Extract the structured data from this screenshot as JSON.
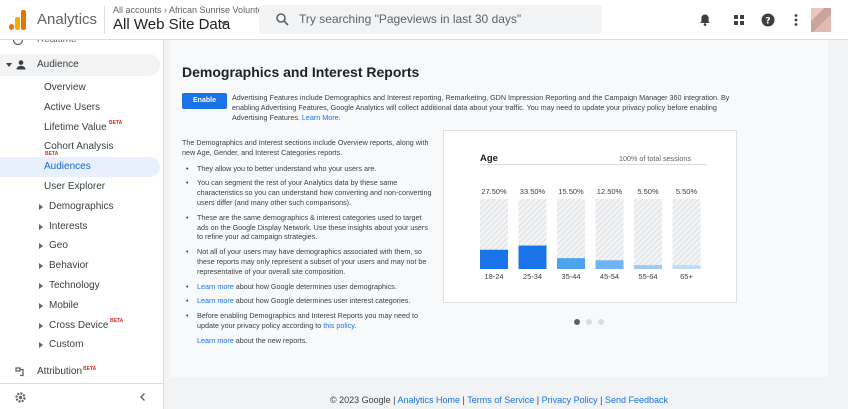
{
  "header": {
    "app_title": "Analytics",
    "account_breadcrumb": "All accounts › African Sunrise Volunte...",
    "property_name": "All Web Site Data",
    "search_placeholder": "Try searching \"Pageviews in last 30 days\"",
    "icons": [
      "notifications-icon",
      "apps-icon",
      "help-icon",
      "more-vert-icon",
      "avatar"
    ]
  },
  "sidebar": {
    "realtime": "Realtime",
    "audience": "Audience",
    "items": [
      {
        "label": "Overview"
      },
      {
        "label": "Active Users"
      },
      {
        "label": "Lifetime Value",
        "badge": "BETA"
      },
      {
        "label": "Cohort Analysis",
        "badge": "BETA"
      },
      {
        "label": "Audiences",
        "active": true
      },
      {
        "label": "User Explorer"
      },
      {
        "label": "Demographics"
      },
      {
        "label": "Interests"
      },
      {
        "label": "Geo"
      },
      {
        "label": "Behavior"
      },
      {
        "label": "Technology"
      },
      {
        "label": "Mobile"
      },
      {
        "label": "Cross Device",
        "badge": "BETA"
      },
      {
        "label": "Custom"
      }
    ],
    "attribution": "Attribution",
    "attribution_badge": "BETA"
  },
  "main": {
    "title": "Demographics and Interest Reports",
    "enable_button": "Enable",
    "intro_text": "Advertising Features include Demographics and Interest reporting, Remarketing, GDN Impression Reporting and the Campaign Manager 360 integration. By enabling Advertising Features, Google Analytics will collect additional data about your traffic. You may need to update your privacy policy before enabling Advertising Features.",
    "intro_link": "Learn More.",
    "description": "The Demographics and Interest sections include Overview reports, along with new Age, Gender, and Interest Categories reports.",
    "bullets": [
      "They allow you to better understand who your users are.",
      "You can segment the rest of your Analytics data by these same characteristics so you can understand how converting and non-converting users differ (and many other such comparisons).",
      "These are the same demographics & interest categories used to target ads on the Google Display Network. Use these insights about your users to refine your ad campaign strategies.",
      "Not all of your users may have demographics associated with them, so these reports may only represent a subset of your users and may not be representative of your overall site composition."
    ],
    "learn_more_1": {
      "link": "Learn more",
      "text": " about how Google determines user demographics."
    },
    "learn_more_2": {
      "link": "Learn more",
      "text": " about how Google determines user interest categories."
    },
    "policy_note": {
      "text": "Before enabling Demographics and Interest Reports you may need to update your privacy policy according to ",
      "link": "this policy",
      "end": "."
    },
    "learn_more_3": {
      "link": "Learn more",
      "text": " about the new reports."
    }
  },
  "chart_data": {
    "type": "bar",
    "title": "Age",
    "subtitle": "100% of total sessions",
    "categories": [
      "18-24",
      "25-34",
      "35-44",
      "45-54",
      "55-64",
      "65+"
    ],
    "values": [
      27.5,
      33.5,
      15.5,
      12.5,
      5.5,
      5.5
    ],
    "value_labels": [
      "27.50%",
      "33.50%",
      "15.50%",
      "12.50%",
      "5.50%",
      "5.50%"
    ],
    "ylim": [
      0,
      100
    ],
    "colors": [
      "#1a73e8",
      "#1a73e8",
      "#4da3ee",
      "#6fb3f0",
      "#9ccaf5",
      "#bcdcf8"
    ]
  },
  "carousel": {
    "pages": 3,
    "active": 0
  },
  "footer": {
    "copyright": "© 2023 Google | ",
    "links": [
      "Analytics Home",
      "Terms of Service",
      "Privacy Policy",
      "Send Feedback"
    ]
  },
  "colors": {
    "accent": "#1a73e8",
    "beta": "#d93025",
    "active_bg": "#e8f0fe"
  }
}
